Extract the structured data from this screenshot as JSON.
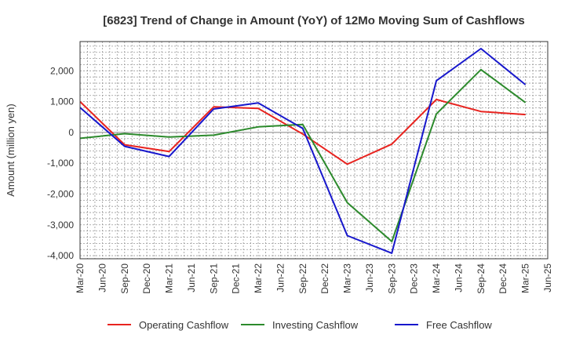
{
  "chart_data": {
    "type": "line",
    "title": "[6823]  Trend of Change in Amount (YoY) of 12Mo Moving Sum of Cashflows",
    "xlabel": "",
    "ylabel": "Amount (million yen)",
    "ylim": [
      -4100,
      2950
    ],
    "yticks": [
      2000,
      1000,
      0,
      -1000,
      -2000,
      -3000,
      -4000
    ],
    "ytick_labels": [
      "2,000",
      "1,000",
      "0",
      "-1,000",
      "-2,000",
      "-3,000",
      "-4,000"
    ],
    "categories": [
      "Mar-20",
      "Jun-20",
      "Sep-20",
      "Dec-20",
      "Mar-21",
      "Jun-21",
      "Sep-21",
      "Dec-21",
      "Mar-22",
      "Jun-22",
      "Sep-22",
      "Dec-22",
      "Mar-23",
      "Jun-23",
      "Sep-23",
      "Dec-23",
      "Mar-24",
      "Jun-24",
      "Sep-24",
      "Dec-24",
      "Mar-25",
      "Jun-25"
    ],
    "grid": true,
    "legend_position": "bottom",
    "series": [
      {
        "name": "Operating Cashflow",
        "color": "#e8231f",
        "points": [
          [
            "Mar-20",
            1000
          ],
          [
            "Sep-20",
            -400
          ],
          [
            "Mar-21",
            -620
          ],
          [
            "Sep-21",
            830
          ],
          [
            "Mar-22",
            780
          ],
          [
            "Sep-22",
            -50
          ],
          [
            "Mar-23",
            -1030
          ],
          [
            "Sep-23",
            -380
          ],
          [
            "Mar-24",
            1070
          ],
          [
            "Sep-24",
            680
          ],
          [
            "Mar-25",
            580
          ]
        ]
      },
      {
        "name": "Investing Cashflow",
        "color": "#2c8a2c",
        "points": [
          [
            "Mar-20",
            -190
          ],
          [
            "Sep-20",
            -40
          ],
          [
            "Mar-21",
            -150
          ],
          [
            "Sep-21",
            -90
          ],
          [
            "Mar-22",
            180
          ],
          [
            "Sep-22",
            260
          ],
          [
            "Mar-23",
            -2280
          ],
          [
            "Sep-23",
            -3540
          ],
          [
            "Mar-24",
            600
          ],
          [
            "Sep-24",
            2040
          ],
          [
            "Mar-25",
            970
          ]
        ]
      },
      {
        "name": "Free Cashflow",
        "color": "#1717cc",
        "points": [
          [
            "Mar-20",
            810
          ],
          [
            "Sep-20",
            -450
          ],
          [
            "Mar-21",
            -780
          ],
          [
            "Sep-21",
            760
          ],
          [
            "Mar-22",
            960
          ],
          [
            "Sep-22",
            130
          ],
          [
            "Mar-23",
            -3350
          ],
          [
            "Sep-23",
            -3920
          ],
          [
            "Mar-24",
            1680
          ],
          [
            "Sep-24",
            2720
          ],
          [
            "Mar-25",
            1550
          ]
        ]
      }
    ]
  }
}
